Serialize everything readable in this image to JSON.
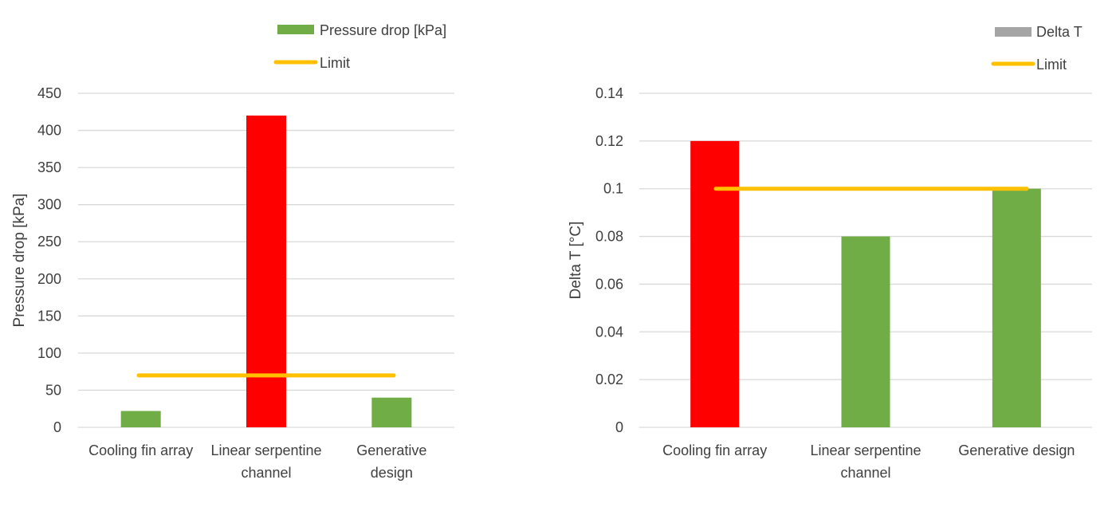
{
  "chart_data": [
    {
      "type": "bar",
      "categories": [
        "Cooling fin array",
        "Linear serpentine channel",
        "Generative design"
      ],
      "category_lines": [
        [
          "Cooling fin array"
        ],
        [
          "Linear serpentine",
          "channel"
        ],
        [
          "Generative",
          "design"
        ]
      ],
      "series": [
        {
          "name": "Pressure drop [kPa]",
          "values": [
            22,
            420,
            40
          ],
          "color": "#70ad47"
        },
        {
          "name": "Limit",
          "type": "line",
          "values": [
            70,
            70,
            70
          ],
          "color": "#ffc000"
        }
      ],
      "bar_colors": [
        "#70ad47",
        "#ff0000",
        "#70ad47"
      ],
      "ylabel": "Pressure drop [kPa]",
      "xlabel": "",
      "ylim": [
        0,
        450
      ],
      "yticks": [
        0,
        50,
        100,
        150,
        200,
        250,
        300,
        350,
        400,
        450
      ],
      "ytick_labels": [
        "0",
        "50",
        "100",
        "150",
        "200",
        "250",
        "300",
        "350",
        "400",
        "450"
      ],
      "grid": true,
      "legend_position": "top-right"
    },
    {
      "type": "bar",
      "categories": [
        "Cooling fin array",
        "Linear serpentine channel",
        "Generative design"
      ],
      "category_lines": [
        [
          "Cooling fin array"
        ],
        [
          "Linear serpentine",
          "channel"
        ],
        [
          "Generative design"
        ]
      ],
      "series": [
        {
          "name": "Delta T",
          "values": [
            0.12,
            0.08,
            0.1
          ],
          "color": "#a5a5a5"
        },
        {
          "name": "Limit",
          "type": "line",
          "values": [
            0.1,
            0.1,
            0.1
          ],
          "color": "#ffc000"
        }
      ],
      "bar_colors": [
        "#ff0000",
        "#70ad47",
        "#70ad47"
      ],
      "ylabel": "Delta T [°C]",
      "xlabel": "",
      "ylim": [
        0,
        0.14
      ],
      "yticks": [
        0,
        0.02,
        0.04,
        0.06,
        0.08,
        0.1,
        0.12,
        0.14
      ],
      "ytick_labels": [
        "0",
        "0.02",
        "0.04",
        "0.06",
        "0.08",
        "0.1",
        "0.12",
        "0.14"
      ],
      "grid": true,
      "legend_position": "top-right"
    }
  ]
}
